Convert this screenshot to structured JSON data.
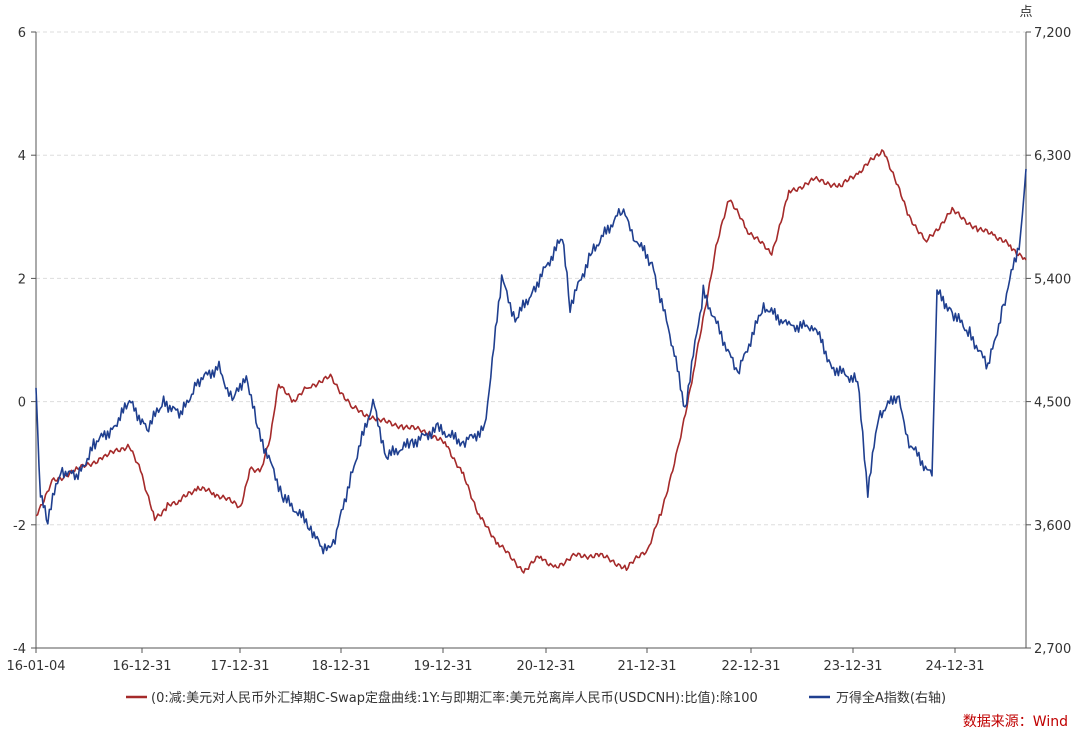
{
  "chart_data": {
    "type": "line",
    "x_ticks": [
      "16-01-04",
      "16-12-31",
      "17-12-31",
      "18-12-31",
      "19-12-31",
      "20-12-31",
      "21-12-31",
      "22-12-31",
      "23-12-31",
      "24-12-31"
    ],
    "y_left": {
      "ylim": [
        -4,
        6
      ],
      "ticks": [
        "6",
        "4",
        "2",
        "0",
        "-2",
        "-4"
      ]
    },
    "y_right": {
      "unit": "点",
      "ylim": [
        2700,
        7200
      ],
      "ticks": [
        "7,200",
        "6,300",
        "5,400",
        "4,500",
        "3,600",
        "2,700"
      ]
    },
    "grid": true,
    "legend_position": "bottom",
    "series": [
      {
        "name": "(0:减:美元对人民币外汇掉期C-Swap定盘曲线:1Y:与即期汇率:美元兑离岸人民币(USDCNH):比值):除100",
        "axis": "left",
        "color": "#a52a2a",
        "points": [
          [
            "2016-01-04",
            -1.85
          ],
          [
            "2016-03-01",
            -1.3
          ],
          [
            "2016-06-01",
            -1.1
          ],
          [
            "2016-09-01",
            -0.9
          ],
          [
            "2016-12-01",
            -0.7
          ],
          [
            "2017-01-15",
            -1.2
          ],
          [
            "2017-03-01",
            -1.9
          ],
          [
            "2017-04-15",
            -1.7
          ],
          [
            "2017-06-01",
            -1.6
          ],
          [
            "2017-08-01",
            -1.4
          ],
          [
            "2017-10-01",
            -1.5
          ],
          [
            "2017-12-31",
            -1.7
          ],
          [
            "2018-02-01",
            -1.1
          ],
          [
            "2018-03-15",
            -1.1
          ],
          [
            "2018-04-15",
            -0.6
          ],
          [
            "2018-05-15",
            0.3
          ],
          [
            "2018-07-01",
            0.0
          ],
          [
            "2018-09-01",
            0.25
          ],
          [
            "2018-11-15",
            0.4
          ],
          [
            "2019-02-01",
            -0.1
          ],
          [
            "2019-05-01",
            -0.3
          ],
          [
            "2019-08-01",
            -0.4
          ],
          [
            "2019-11-01",
            -0.5
          ],
          [
            "2020-01-01",
            -0.7
          ],
          [
            "2020-03-01",
            -1.2
          ],
          [
            "2020-05-01",
            -1.9
          ],
          [
            "2020-07-01",
            -2.3
          ],
          [
            "2020-10-01",
            -2.75
          ],
          [
            "2020-12-01",
            -2.5
          ],
          [
            "2021-01-15",
            -2.7
          ],
          [
            "2021-04-01",
            -2.5
          ],
          [
            "2021-07-01",
            -2.5
          ],
          [
            "2021-10-01",
            -2.7
          ],
          [
            "2021-12-15",
            -2.4
          ],
          [
            "2022-02-01",
            -1.8
          ],
          [
            "2022-04-01",
            -0.8
          ],
          [
            "2022-06-01",
            0.6
          ],
          [
            "2022-08-15",
            2.5
          ],
          [
            "2022-10-01",
            3.3
          ],
          [
            "2022-12-01",
            2.8
          ],
          [
            "2023-03-01",
            2.4
          ],
          [
            "2023-05-01",
            3.4
          ],
          [
            "2023-08-01",
            3.6
          ],
          [
            "2023-11-01",
            3.5
          ],
          [
            "2024-01-01",
            3.7
          ],
          [
            "2024-04-01",
            4.1
          ],
          [
            "2024-07-01",
            3.0
          ],
          [
            "2024-09-01",
            2.6
          ],
          [
            "2024-12-01",
            3.1
          ],
          [
            "2025-03-01",
            2.8
          ],
          [
            "2025-05-01",
            2.7
          ],
          [
            "2025-07-01",
            2.5
          ],
          [
            "2025-08-20",
            2.3
          ]
        ]
      },
      {
        "name": "万得全A指数(右轴)",
        "axis": "right",
        "color": "#1f3f8f",
        "points": [
          [
            "2016-01-04",
            4600
          ],
          [
            "2016-01-20",
            3800
          ],
          [
            "2016-02-15",
            3650
          ],
          [
            "2016-04-01",
            4000
          ],
          [
            "2016-06-01",
            3950
          ],
          [
            "2016-08-01",
            4200
          ],
          [
            "2016-10-01",
            4300
          ],
          [
            "2016-12-01",
            4500
          ],
          [
            "2017-02-01",
            4300
          ],
          [
            "2017-04-01",
            4500
          ],
          [
            "2017-06-01",
            4400
          ],
          [
            "2017-08-01",
            4650
          ],
          [
            "2017-10-15",
            4750
          ],
          [
            "2017-12-01",
            4500
          ],
          [
            "2018-01-20",
            4700
          ],
          [
            "2018-03-01",
            4300
          ],
          [
            "2018-06-01",
            3800
          ],
          [
            "2018-09-01",
            3600
          ],
          [
            "2018-10-20",
            3400
          ],
          [
            "2018-12-01",
            3500
          ],
          [
            "2019-02-01",
            4000
          ],
          [
            "2019-04-15",
            4500
          ],
          [
            "2019-06-01",
            4100
          ],
          [
            "2019-09-01",
            4200
          ],
          [
            "2019-12-01",
            4300
          ],
          [
            "2020-03-01",
            4200
          ],
          [
            "2020-05-15",
            4300
          ],
          [
            "2020-07-15",
            5400
          ],
          [
            "2020-09-01",
            5100
          ],
          [
            "2020-11-01",
            5300
          ],
          [
            "2021-02-15",
            5700
          ],
          [
            "2021-03-15",
            5200
          ],
          [
            "2021-06-01",
            5600
          ],
          [
            "2021-09-15",
            5900
          ],
          [
            "2021-11-01",
            5700
          ],
          [
            "2021-12-31",
            5500
          ],
          [
            "2022-03-15",
            4900
          ],
          [
            "2022-04-27",
            4450
          ],
          [
            "2022-07-01",
            5300
          ],
          [
            "2022-10-31",
            4700
          ],
          [
            "2023-01-31",
            5200
          ],
          [
            "2023-05-01",
            5050
          ],
          [
            "2023-08-01",
            5050
          ],
          [
            "2023-10-01",
            4750
          ],
          [
            "2023-12-31",
            4650
          ],
          [
            "2024-02-05",
            3850
          ],
          [
            "2024-03-15",
            4400
          ],
          [
            "2024-05-20",
            4550
          ],
          [
            "2024-07-01",
            4200
          ],
          [
            "2024-09-20",
            3950
          ],
          [
            "2024-10-08",
            5300
          ],
          [
            "2024-12-01",
            5150
          ],
          [
            "2025-02-01",
            5000
          ],
          [
            "2025-04-07",
            4750
          ],
          [
            "2025-06-01",
            5200
          ],
          [
            "2025-08-01",
            5700
          ],
          [
            "2025-08-20",
            6200
          ]
        ]
      }
    ]
  },
  "source_text": "数据来源：Wind"
}
